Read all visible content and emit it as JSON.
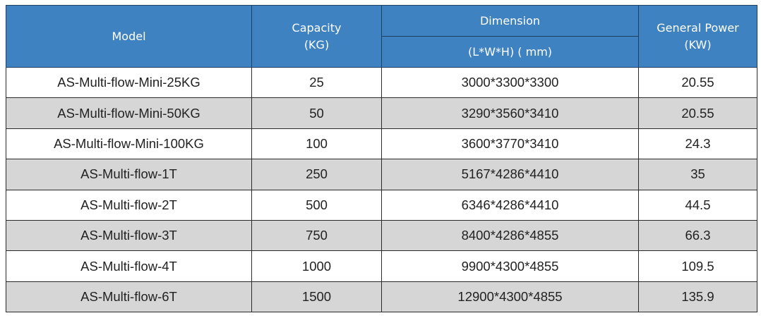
{
  "table": {
    "headers": {
      "model": "Model",
      "capacity_line1": "Capacity",
      "capacity_line2": "(KG)",
      "dimension": "Dimension",
      "dimension_unit": "(L*W*H) ( mm)",
      "power_line1": "General Power",
      "power_line2": "(KW)"
    },
    "rows": [
      {
        "model": "AS-Multi-flow-Mini-25KG",
        "capacity": "25",
        "dimension": "3000*3300*3300",
        "power": "20.55"
      },
      {
        "model": "AS-Multi-flow-Mini-50KG",
        "capacity": "50",
        "dimension": "3290*3560*3410",
        "power": "20.55"
      },
      {
        "model": "AS-Multi-flow-Mini-100KG",
        "capacity": "100",
        "dimension": "3600*3770*3410",
        "power": "24.3"
      },
      {
        "model": "AS-Multi-flow-1T",
        "capacity": "250",
        "dimension": "5167*4286*4410",
        "power": "35"
      },
      {
        "model": "AS-Multi-flow-2T",
        "capacity": "500",
        "dimension": "6346*4286*4410",
        "power": "44.5"
      },
      {
        "model": "AS-Multi-flow-3T",
        "capacity": "750",
        "dimension": "8400*4286*4855",
        "power": "66.3"
      },
      {
        "model": "AS-Multi-flow-4T",
        "capacity": "1000",
        "dimension": "9900*4300*4855",
        "power": "109.5"
      },
      {
        "model": "AS-Multi-flow-6T",
        "capacity": "1500",
        "dimension": "12900*4300*4855",
        "power": "135.9"
      }
    ],
    "colors": {
      "header_bg": "#3e82c1",
      "header_text": "#ffffff",
      "row_alt_bg": "#d6d6d6",
      "row_bg": "#ffffff"
    }
  }
}
